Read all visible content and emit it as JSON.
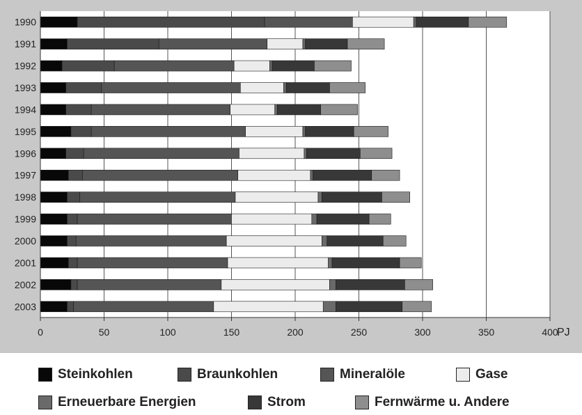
{
  "chart_data": {
    "type": "bar",
    "orientation": "horizontal",
    "stacked": true,
    "unit": "PJ",
    "xlim": [
      0,
      400
    ],
    "x_ticks": [
      0,
      50,
      100,
      150,
      200,
      250,
      300,
      350,
      400
    ],
    "grid": "vertical",
    "legend_position": "bottom",
    "categories": [
      "1990",
      "1991",
      "1992",
      "1993",
      "1994",
      "1995",
      "1996",
      "1997",
      "1998",
      "1999",
      "2000",
      "2001",
      "2002",
      "2003"
    ],
    "series": [
      {
        "name": "Steinkohlen",
        "color": "#080808",
        "values": [
          29,
          21,
          17,
          20,
          20,
          24,
          20,
          22,
          21,
          21,
          21,
          22,
          24,
          21
        ]
      },
      {
        "name": "Braunkohlen",
        "color": "#4a4a4a",
        "values": [
          147,
          72,
          41,
          28,
          20,
          16,
          14,
          11,
          10,
          8,
          7,
          7,
          5,
          5
        ]
      },
      {
        "name": "Mineralöle",
        "color": "#555555",
        "values": [
          69,
          85,
          94,
          109,
          109,
          121,
          122,
          122,
          122,
          121,
          118,
          118,
          113,
          110
        ]
      },
      {
        "name": "Gase",
        "color": "#ececec",
        "values": [
          48,
          28,
          28,
          34,
          35,
          45,
          51,
          57,
          65,
          63,
          75,
          79,
          85,
          86
        ]
      },
      {
        "name": "Erneuerbare Energien",
        "color": "#6a6a6a",
        "values": [
          2,
          2,
          2,
          2,
          2,
          2,
          2,
          2,
          3,
          4,
          4,
          3,
          5,
          10
        ]
      },
      {
        "name": "Strom",
        "color": "#383838",
        "values": [
          41,
          33,
          33,
          34,
          34,
          38,
          42,
          46,
          47,
          41,
          44,
          53,
          54,
          52
        ]
      },
      {
        "name": "Fernwärme u. Andere",
        "color": "#8e8e8e",
        "values": [
          30,
          29,
          29,
          28,
          29,
          27,
          25,
          22,
          22,
          17,
          18,
          17,
          22,
          23
        ]
      }
    ]
  },
  "legend": {
    "row1": [
      "Steinkohlen",
      "Braunkohlen",
      "Mineralöle",
      "Gase"
    ],
    "row2": [
      "Erneuerbare Energien",
      "Strom",
      "Fernwärme u. Andere"
    ]
  }
}
